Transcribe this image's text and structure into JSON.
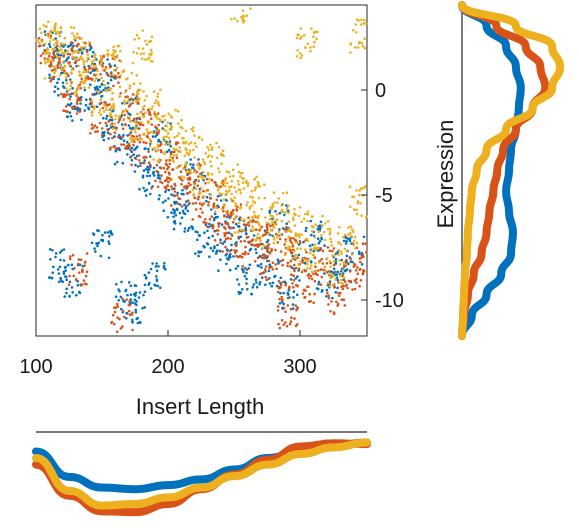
{
  "chart_data": [
    {
      "type": "scatter",
      "xlabel": "Insert Length",
      "ylabel": "Expression",
      "xlim": [
        100,
        350
      ],
      "ylim": [
        -12,
        4
      ],
      "x_ticks": [
        100,
        200,
        300
      ],
      "y_ticks": [
        0,
        -5,
        -10
      ],
      "y_axis_position": "right",
      "grid": false,
      "series_colors": [
        "#0072BD",
        "#D95319",
        "#EDB120"
      ],
      "series": [
        {
          "color": "#0072BD",
          "points": [
            [
              112,
              2.1
            ],
            [
              118,
              0.4
            ],
            [
              125,
              1.5
            ],
            [
              130,
              -0.8
            ],
            [
              138,
              1.2
            ],
            [
              145,
              -0.3
            ],
            [
              152,
              0.6
            ],
            [
              158,
              -1.8
            ],
            [
              165,
              -2.9
            ],
            [
              172,
              -1.2
            ],
            [
              180,
              -3.5
            ],
            [
              186,
              -4.6
            ],
            [
              195,
              -2.4
            ],
            [
              204,
              -5.5
            ],
            [
              212,
              -6.2
            ],
            [
              220,
              -4.1
            ],
            [
              228,
              -7.4
            ],
            [
              236,
              -5.9
            ],
            [
              244,
              -8.1
            ],
            [
              252,
              -6.8
            ],
            [
              260,
              -9.3
            ],
            [
              268,
              -7.5
            ],
            [
              276,
              -8.8
            ],
            [
              284,
              -6.4
            ],
            [
              292,
              -9.9
            ],
            [
              300,
              -8.2
            ],
            [
              310,
              -7.1
            ],
            [
              320,
              -9.4
            ],
            [
              330,
              -8.6
            ],
            [
              340,
              -7.8
            ],
            [
              116,
              -8.6
            ],
            [
              128,
              -9.3
            ],
            [
              168,
              -10.1
            ],
            [
              175,
              -10.6
            ],
            [
              190,
              -9.2
            ],
            [
              150,
              -7.5
            ]
          ]
        },
        {
          "color": "#D95319",
          "points": [
            [
              110,
              1.8
            ],
            [
              119,
              0.9
            ],
            [
              127,
              -0.5
            ],
            [
              133,
              1.6
            ],
            [
              141,
              0.2
            ],
            [
              149,
              -1.5
            ],
            [
              156,
              0.8
            ],
            [
              163,
              -2.2
            ],
            [
              170,
              -0.9
            ],
            [
              178,
              -3.1
            ],
            [
              185,
              -1.8
            ],
            [
              193,
              -4.2
            ],
            [
              201,
              -3.3
            ],
            [
              209,
              -5.1
            ],
            [
              217,
              -4.4
            ],
            [
              226,
              -6.0
            ],
            [
              234,
              -5.2
            ],
            [
              242,
              -7.3
            ],
            [
              250,
              -6.1
            ],
            [
              258,
              -8.0
            ],
            [
              266,
              -6.9
            ],
            [
              274,
              -8.5
            ],
            [
              282,
              -7.3
            ],
            [
              290,
              -9.1
            ],
            [
              298,
              -8.0
            ],
            [
              308,
              -9.6
            ],
            [
              318,
              -8.4
            ],
            [
              328,
              -10.2
            ],
            [
              338,
              -9.0
            ],
            [
              346,
              -8.3
            ],
            [
              165,
              -11.0
            ],
            [
              290,
              -10.9
            ],
            [
              132,
              -8.8
            ]
          ]
        },
        {
          "color": "#EDB120",
          "points": [
            [
              108,
              2.6
            ],
            [
              114,
              1.1
            ],
            [
              121,
              2.2
            ],
            [
              129,
              0.5
            ],
            [
              136,
              1.9
            ],
            [
              143,
              0.8
            ],
            [
              150,
              -0.6
            ],
            [
              157,
              1.3
            ],
            [
              164,
              -1.3
            ],
            [
              171,
              0.1
            ],
            [
              179,
              -2.0
            ],
            [
              186,
              -0.8
            ],
            [
              194,
              -2.8
            ],
            [
              202,
              -1.6
            ],
            [
              210,
              -3.6
            ],
            [
              218,
              -2.6
            ],
            [
              226,
              -4.5
            ],
            [
              234,
              -3.4
            ],
            [
              242,
              -5.3
            ],
            [
              250,
              -4.4
            ],
            [
              258,
              -6.2
            ],
            [
              266,
              -5.1
            ],
            [
              274,
              -7.0
            ],
            [
              282,
              -5.8
            ],
            [
              290,
              -7.6
            ],
            [
              298,
              -6.5
            ],
            [
              306,
              -8.1
            ],
            [
              316,
              -7.0
            ],
            [
              326,
              -8.8
            ],
            [
              336,
              -7.5
            ],
            [
              345,
              -5.5
            ],
            [
              255,
              3.9
            ],
            [
              305,
              2.2
            ],
            [
              345,
              2.5
            ],
            [
              180,
              2.0
            ]
          ]
        }
      ]
    },
    {
      "type": "line",
      "description_of_axes": "marginal density of Insert Length",
      "x": [
        100,
        125,
        150,
        175,
        200,
        225,
        250,
        275,
        300,
        325,
        350
      ],
      "series": [
        {
          "color": "#0072BD",
          "values": [
            0.86,
            0.55,
            0.42,
            0.4,
            0.45,
            0.52,
            0.64,
            0.78,
            0.87,
            0.93,
            0.97
          ]
        },
        {
          "color": "#D95319",
          "values": [
            0.7,
            0.32,
            0.13,
            0.12,
            0.22,
            0.4,
            0.58,
            0.76,
            0.92,
            0.96,
            0.95
          ]
        },
        {
          "color": "#EDB120",
          "values": [
            0.78,
            0.38,
            0.2,
            0.22,
            0.3,
            0.42,
            0.56,
            0.7,
            0.83,
            0.91,
            0.97
          ]
        }
      ]
    },
    {
      "type": "line",
      "description_of_axes": "marginal density of Expression",
      "y": [
        4,
        3,
        2,
        1,
        0,
        -1,
        -2,
        -3,
        -4,
        -5,
        -6,
        -7,
        -8,
        -9,
        -10,
        -11,
        -12
      ],
      "series": [
        {
          "color": "#0072BD",
          "values": [
            0.0,
            0.25,
            0.45,
            0.55,
            0.6,
            0.58,
            0.55,
            0.5,
            0.48,
            0.45,
            0.48,
            0.52,
            0.5,
            0.4,
            0.25,
            0.1,
            0.0
          ]
        },
        {
          "color": "#D95319",
          "values": [
            0.0,
            0.35,
            0.65,
            0.8,
            0.85,
            0.72,
            0.55,
            0.42,
            0.36,
            0.32,
            0.28,
            0.25,
            0.2,
            0.12,
            0.06,
            0.02,
            0.0
          ]
        },
        {
          "color": "#EDB120",
          "values": [
            0.0,
            0.55,
            0.92,
            1.0,
            0.92,
            0.72,
            0.45,
            0.25,
            0.15,
            0.1,
            0.08,
            0.06,
            0.05,
            0.03,
            0.02,
            0.01,
            0.0
          ]
        }
      ]
    }
  ]
}
